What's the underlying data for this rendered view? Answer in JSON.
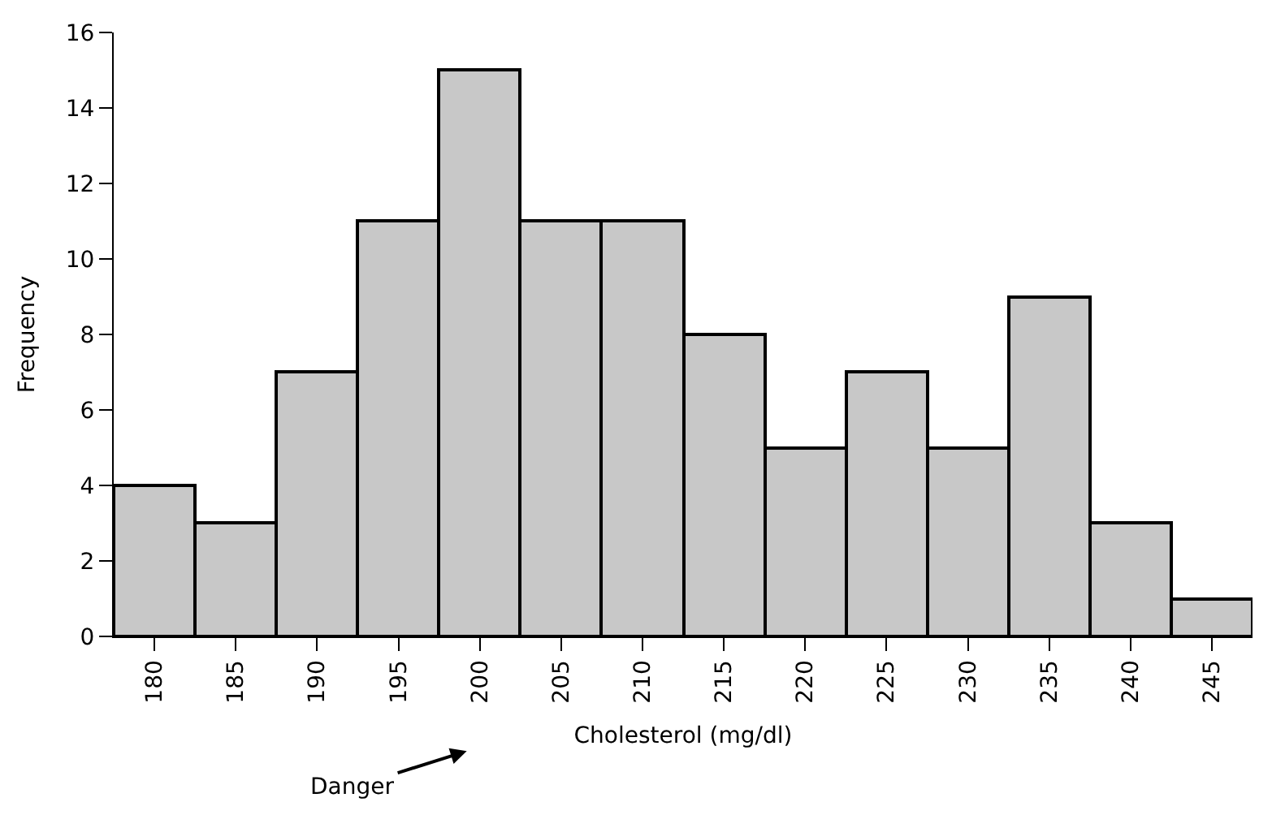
{
  "chart_data": {
    "type": "histogram",
    "xlabel": "Cholesterol (mg/dl)",
    "ylabel": "Frequency",
    "bins": [
      177.5,
      182.5,
      187.5,
      192.5,
      197.5,
      202.5,
      207.5,
      212.5,
      217.5,
      222.5,
      227.5,
      232.5,
      237.5,
      242.5,
      247.5
    ],
    "values": [
      4,
      3,
      7,
      11,
      15,
      11,
      11,
      8,
      5,
      7,
      5,
      9,
      3,
      1
    ],
    "color": "#c8c8c8",
    "xlim": [
      177.5,
      247.5
    ],
    "xticks": [
      180,
      185,
      190,
      195,
      200,
      205,
      210,
      215,
      220,
      225,
      230,
      235,
      240,
      245
    ],
    "ylim": [
      0,
      16
    ],
    "yticks": [
      0,
      2,
      4,
      6,
      8,
      10,
      12,
      14,
      16
    ],
    "annotations": [
      "Danger"
    ]
  }
}
